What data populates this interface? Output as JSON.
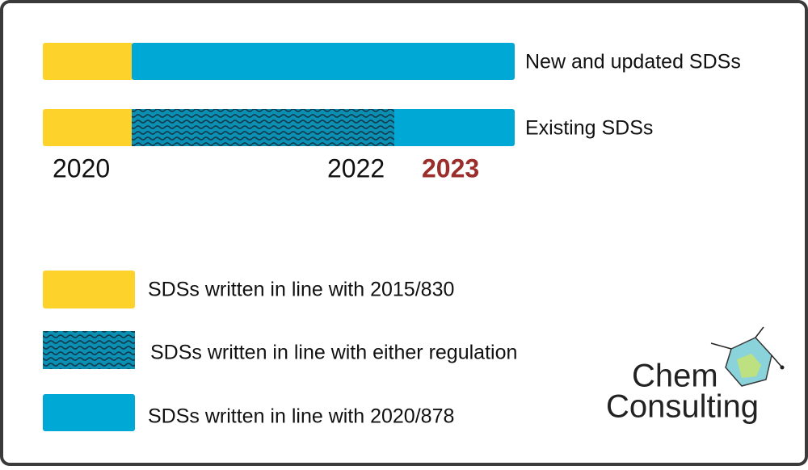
{
  "timeline": {
    "rows": [
      {
        "label": "New and updated SDSs"
      },
      {
        "label": "Existing SDSs"
      }
    ],
    "years": [
      "2020",
      "2022",
      "2023"
    ]
  },
  "legend": {
    "items": [
      {
        "label": "SDSs written in line with 2015/830"
      },
      {
        "label": "SDSs written in line with either regulation"
      },
      {
        "label": "SDSs written in line with 2020/878"
      }
    ]
  },
  "logo": {
    "line1": "Chem",
    "line2": "Consulting"
  }
}
